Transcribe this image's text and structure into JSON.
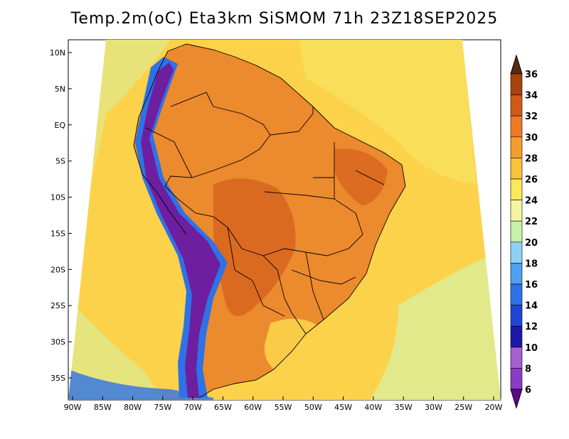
{
  "title": "Temp.2m(oC) Eta3km SiSMOM 71h 23Z18SEP2025",
  "map": {
    "lat_ticks": [
      {
        "label": "10N",
        "lat": 10
      },
      {
        "label": "5N",
        "lat": 5
      },
      {
        "label": "EQ",
        "lat": 0
      },
      {
        "label": "5S",
        "lat": -5
      },
      {
        "label": "10S",
        "lat": -10
      },
      {
        "label": "15S",
        "lat": -15
      },
      {
        "label": "20S",
        "lat": -20
      },
      {
        "label": "25S",
        "lat": -25
      },
      {
        "label": "30S",
        "lat": -30
      },
      {
        "label": "35S",
        "lat": -35
      }
    ],
    "lon_ticks": [
      {
        "label": "90W",
        "lon": -90
      },
      {
        "label": "85W",
        "lon": -85
      },
      {
        "label": "80W",
        "lon": -80
      },
      {
        "label": "75W",
        "lon": -75
      },
      {
        "label": "70W",
        "lon": -70
      },
      {
        "label": "65W",
        "lon": -65
      },
      {
        "label": "60W",
        "lon": -60
      },
      {
        "label": "55W",
        "lon": -55
      },
      {
        "label": "50W",
        "lon": -50
      },
      {
        "label": "45W",
        "lon": -45
      },
      {
        "label": "40W",
        "lon": -40
      },
      {
        "label": "35W",
        "lon": -35
      },
      {
        "label": "30W",
        "lon": -30
      },
      {
        "label": "25W",
        "lon": -25
      },
      {
        "label": "20W",
        "lon": -20
      }
    ]
  },
  "colorbar": {
    "levels": [
      "6",
      "8",
      "10",
      "12",
      "14",
      "16",
      "18",
      "20",
      "22",
      "24",
      "26",
      "28",
      "30",
      "32",
      "34",
      "36"
    ],
    "colors": [
      "#6a0dad",
      "#8a3cc4",
      "#a45fd0",
      "#1a1aa6",
      "#1f46d2",
      "#2e72e6",
      "#4fa0f0",
      "#8fd0f5",
      "#c8f0a8",
      "#f5f5a0",
      "#fbe75a",
      "#f9c33a",
      "#f59c30",
      "#ef7a26",
      "#cf5a1a",
      "#a8420f",
      "#6e2a08"
    ],
    "low_arrow_color": "#5a0a8c",
    "high_arrow_color": "#5a2a10"
  },
  "palette": {
    "ocean_warm": "#fbd24a",
    "ocean_mild": "#f8e868",
    "ocean_cool": "#d8f0a0",
    "land_hot": "#ec8a2e",
    "land_very_hot": "#d8641e",
    "andes": "#6d1fa0",
    "andes_edge": "#2e72e6",
    "border_line": "#000000"
  }
}
